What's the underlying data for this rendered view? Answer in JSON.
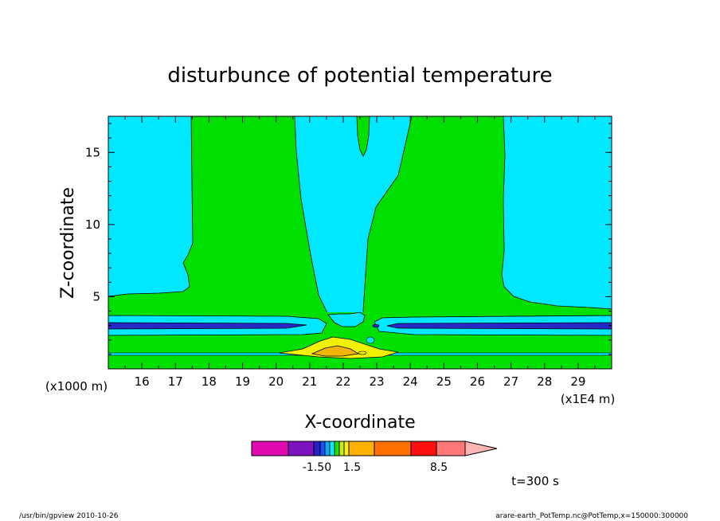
{
  "chart_data": {
    "type": "contour",
    "title": "disturbunce of potential temperature",
    "xlabel": "X-coordinate",
    "ylabel": "Z-coordinate",
    "x_unit": "(x1E4 m)",
    "y_unit": "(x1000 m)",
    "xlim": [
      15.0,
      30.0
    ],
    "ylim": [
      0.0,
      17.5
    ],
    "x_ticks": [
      "16",
      "17",
      "18",
      "19",
      "20",
      "21",
      "22",
      "23",
      "24",
      "25",
      "26",
      "27",
      "28",
      "29"
    ],
    "y_ticks": [
      "5",
      "10",
      "15"
    ],
    "time_label": "t=300 s",
    "colorbar": {
      "labels": [
        "-1.50",
        "1.5",
        "8.5"
      ],
      "colors": [
        "#e00ab0",
        "#7d12c0",
        "#2a20c8",
        "#1a50ff",
        "#00b0ff",
        "#00f0ff",
        "#20e000",
        "#c8f000",
        "#fff000",
        "#ffb000",
        "#ff7000",
        "#ff1010",
        "#ff7878",
        "#ffb4b4"
      ]
    },
    "regions": {
      "background": "#00e8ff",
      "green": "#00e000",
      "dark_blue": "#2828c8",
      "yellow": "#f0f000",
      "orange": "#f0b400"
    }
  },
  "footer": {
    "left": "/usr/bin/gpview   2010-10-26",
    "right": "arare-earth_PotTemp.nc@PotTemp,x=150000:300000"
  }
}
